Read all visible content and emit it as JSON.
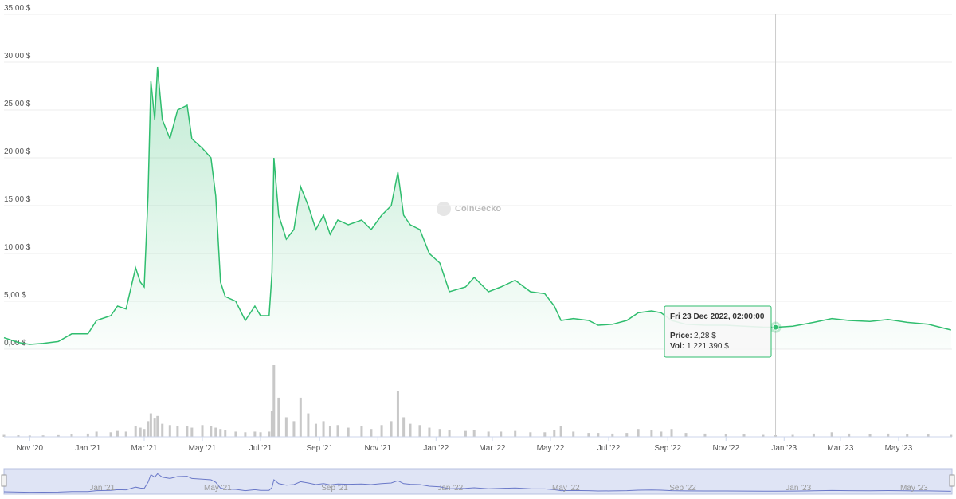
{
  "chart_data": {
    "type": "line",
    "x": [
      "2020-10-05",
      "2020-10-20",
      "2020-11-01",
      "2020-11-15",
      "2020-12-01",
      "2020-12-15",
      "2021-01-01",
      "2021-01-10",
      "2021-01-25",
      "2021-02-01",
      "2021-02-10",
      "2021-02-20",
      "2021-02-25",
      "2021-03-01",
      "2021-03-05",
      "2021-03-08",
      "2021-03-12",
      "2021-03-15",
      "2021-03-20",
      "2021-03-28",
      "2021-04-05",
      "2021-04-15",
      "2021-04-20",
      "2021-05-01",
      "2021-05-10",
      "2021-05-15",
      "2021-05-20",
      "2021-05-25",
      "2021-06-05",
      "2021-06-15",
      "2021-06-25",
      "2021-07-01",
      "2021-07-10",
      "2021-07-13",
      "2021-07-15",
      "2021-07-20",
      "2021-07-28",
      "2021-08-05",
      "2021-08-12",
      "2021-08-20",
      "2021-08-28",
      "2021-09-05",
      "2021-09-12",
      "2021-09-20",
      "2021-10-01",
      "2021-10-15",
      "2021-10-25",
      "2021-11-05",
      "2021-11-15",
      "2021-11-22",
      "2021-11-28",
      "2021-12-05",
      "2021-12-15",
      "2021-12-25",
      "2022-01-05",
      "2022-01-15",
      "2022-02-01",
      "2022-02-10",
      "2022-02-25",
      "2022-03-10",
      "2022-03-25",
      "2022-04-10",
      "2022-04-25",
      "2022-05-05",
      "2022-05-12",
      "2022-05-25",
      "2022-06-10",
      "2022-06-20",
      "2022-07-05",
      "2022-07-20",
      "2022-08-01",
      "2022-08-15",
      "2022-08-25",
      "2022-09-05",
      "2022-09-20",
      "2022-10-10",
      "2022-11-01",
      "2022-11-20",
      "2022-12-10",
      "2022-12-23",
      "2023-01-10",
      "2023-02-01",
      "2023-02-20",
      "2023-03-10",
      "2023-04-01",
      "2023-04-20",
      "2023-05-10",
      "2023-06-01",
      "2023-06-25"
    ],
    "series": [
      {
        "name": "Price",
        "color": "#2fbd6e",
        "values": [
          1.2,
          0.7,
          0.5,
          0.6,
          0.8,
          1.6,
          1.6,
          3.0,
          3.5,
          4.5,
          4.2,
          8.5,
          7.0,
          6.5,
          16,
          28,
          24,
          29.5,
          24,
          22,
          25,
          25.5,
          22,
          21,
          20,
          16,
          7,
          5.5,
          5,
          3,
          4.5,
          3.5,
          3.5,
          8,
          20,
          14,
          11.5,
          12.5,
          17,
          15,
          12.5,
          14,
          12,
          13.5,
          13,
          13.5,
          12.5,
          14,
          15,
          18.5,
          14,
          13,
          12.5,
          10,
          9,
          6,
          6.5,
          7.5,
          6,
          6.5,
          7.2,
          6,
          5.8,
          4.5,
          3,
          3.2,
          3,
          2.5,
          2.6,
          3,
          3.8,
          4,
          3.8,
          3,
          2.6,
          2.5,
          2.5,
          2.4,
          2.3,
          2.28,
          2.4,
          2.8,
          3.2,
          3,
          2.9,
          3.1,
          2.8,
          2.6,
          2.0
        ]
      },
      {
        "name": "Vol",
        "color": "#c8c8c8",
        "values": [
          1500000,
          1200000,
          1000000,
          1100000,
          1300000,
          2000000,
          2500000,
          4000000,
          3500000,
          4500000,
          4000000,
          8000000,
          7000000,
          6000000,
          12000000,
          18000000,
          14000000,
          16000000,
          10000000,
          9000000,
          8000000,
          8500000,
          7000000,
          9000000,
          8000000,
          7000000,
          6000000,
          5000000,
          4000000,
          3500000,
          4000000,
          3500000,
          4000000,
          20000000,
          55000000,
          30000000,
          15000000,
          12000000,
          30000000,
          18000000,
          10000000,
          12000000,
          8000000,
          9000000,
          7000000,
          8000000,
          6000000,
          9000000,
          12000000,
          35000000,
          15000000,
          10000000,
          9000000,
          7000000,
          6000000,
          5000000,
          4500000,
          5000000,
          4000000,
          4000000,
          4500000,
          3500000,
          3500000,
          5000000,
          8000000,
          4000000,
          3000000,
          3000000,
          2500000,
          3000000,
          6000000,
          5000000,
          4000000,
          6000000,
          3000000,
          2500000,
          2000000,
          1800000,
          1500000,
          1221390,
          1500000,
          2500000,
          3500000,
          2500000,
          2000000,
          2500000,
          2000000,
          1800000,
          1500000
        ]
      }
    ],
    "xlim": [
      "2020-10-05",
      "2023-06-26"
    ],
    "xticks": [
      {
        "value": "2020-11-01",
        "label": "Nov '20"
      },
      {
        "value": "2021-01-01",
        "label": "Jan '21"
      },
      {
        "value": "2021-03-01",
        "label": "Mar '21"
      },
      {
        "value": "2021-05-01",
        "label": "May '21"
      },
      {
        "value": "2021-07-01",
        "label": "Jul '21"
      },
      {
        "value": "2021-09-01",
        "label": "Sep '21"
      },
      {
        "value": "2021-11-01",
        "label": "Nov '21"
      },
      {
        "value": "2022-01-01",
        "label": "Jan '22"
      },
      {
        "value": "2022-03-01",
        "label": "Mar '22"
      },
      {
        "value": "2022-05-01",
        "label": "May '22"
      },
      {
        "value": "2022-07-01",
        "label": "Jul '22"
      },
      {
        "value": "2022-09-01",
        "label": "Sep '22"
      },
      {
        "value": "2022-11-01",
        "label": "Nov '22"
      },
      {
        "value": "2023-01-01",
        "label": "Jan '23"
      },
      {
        "value": "2023-03-01",
        "label": "Mar '23"
      },
      {
        "value": "2023-05-01",
        "label": "May '23"
      }
    ],
    "ylim": [
      0,
      35
    ],
    "yticks": [
      {
        "value": 0,
        "label": "0,00 $"
      },
      {
        "value": 5,
        "label": "5,00 $"
      },
      {
        "value": 10,
        "label": "10,00 $"
      },
      {
        "value": 15,
        "label": "15,00 $"
      },
      {
        "value": 20,
        "label": "20,00 $"
      },
      {
        "value": 25,
        "label": "25,00 $"
      },
      {
        "value": 30,
        "label": "30,00 $"
      },
      {
        "value": 35,
        "label": "35,00 $"
      }
    ],
    "grid": true,
    "watermark": "CoinGecko",
    "tooltip": {
      "date": "Fri 23 Dec 2022, 02:00:00",
      "price_label": "Price:",
      "price": "2,28 $",
      "vol_label": "Vol:",
      "vol": "1 221 390 $",
      "index": 79
    }
  }
}
